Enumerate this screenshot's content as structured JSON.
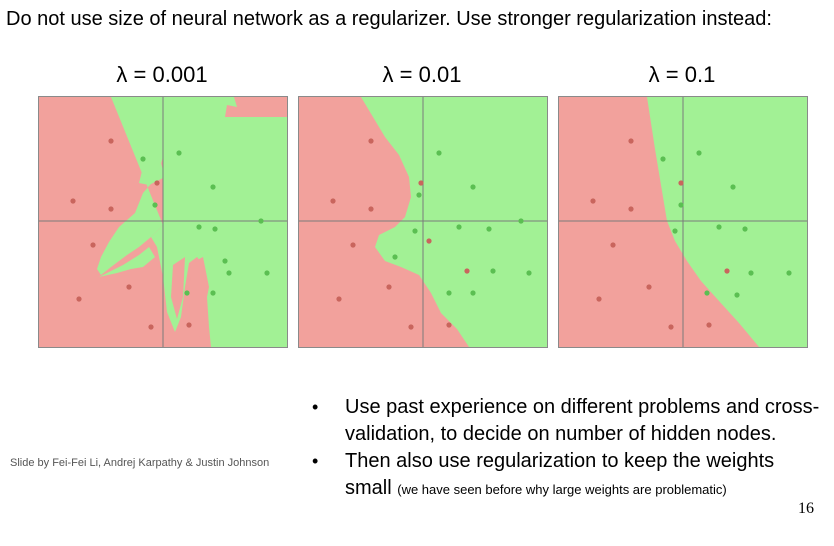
{
  "slide": {
    "title": "Do not use size of neural network as a regularizer. Use stronger regularization instead:",
    "credit": "Slide by Fei-Fei Li, Andrej Karpathy & Justin Johnson",
    "page_number": "16"
  },
  "panels": [
    {
      "label": "λ = 0.001"
    },
    {
      "label": "λ = 0.01"
    },
    {
      "label": "λ = 0.1"
    }
  ],
  "bullets": {
    "marker": "•",
    "first": "Use past experience on different problems and cross-validation, to decide on number of hidden nodes.",
    "second_main": "Then also use regularization to keep the weights small",
    "second_note": "(we have seen before why large weights are problematic)"
  },
  "colors": {
    "red_region": "#f2a19c",
    "green_region": "#a2f195",
    "red_point": "#c9655d",
    "green_point": "#5bbf52",
    "axis": "#7a7a7a"
  }
}
